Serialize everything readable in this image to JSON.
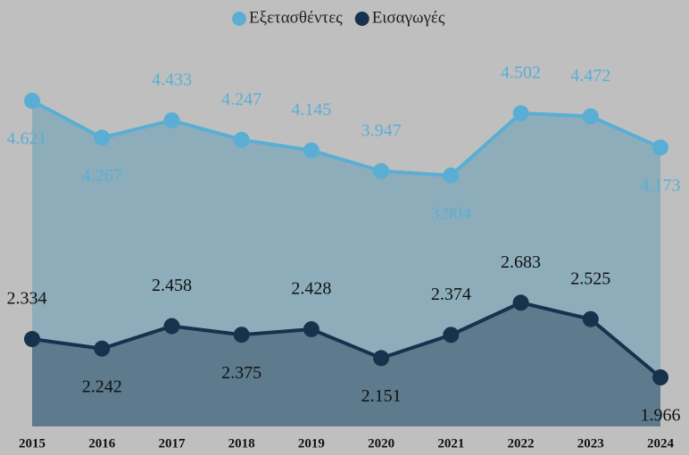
{
  "chart_data": {
    "type": "area",
    "categories": [
      "2015",
      "2016",
      "2017",
      "2018",
      "2019",
      "2020",
      "2021",
      "2022",
      "2023",
      "2024"
    ],
    "series": [
      {
        "name": "Εξετασθέντες",
        "color": "#5aaed4",
        "area_color": "#8eadbb",
        "values": [
          4621,
          4267,
          4433,
          4247,
          4145,
          3947,
          3904,
          4502,
          4472,
          4173
        ],
        "value_labels": [
          "4.621",
          "4.267",
          "4.433",
          "4.247",
          "4.145",
          "3.947",
          "3.904",
          "4.502",
          "4.472",
          "4.173"
        ]
      },
      {
        "name": "Εισαγωγές",
        "color": "#17324d",
        "area_color": "#5d7b8d",
        "values": [
          2334,
          2242,
          2458,
          2375,
          2428,
          2151,
          2374,
          2683,
          2525,
          1966
        ],
        "value_labels": [
          "2.334",
          "2.242",
          "2.458",
          "2.375",
          "2.428",
          "2.151",
          "2.374",
          "2.683",
          "2.525",
          "1.966"
        ]
      }
    ],
    "legend": "top"
  }
}
